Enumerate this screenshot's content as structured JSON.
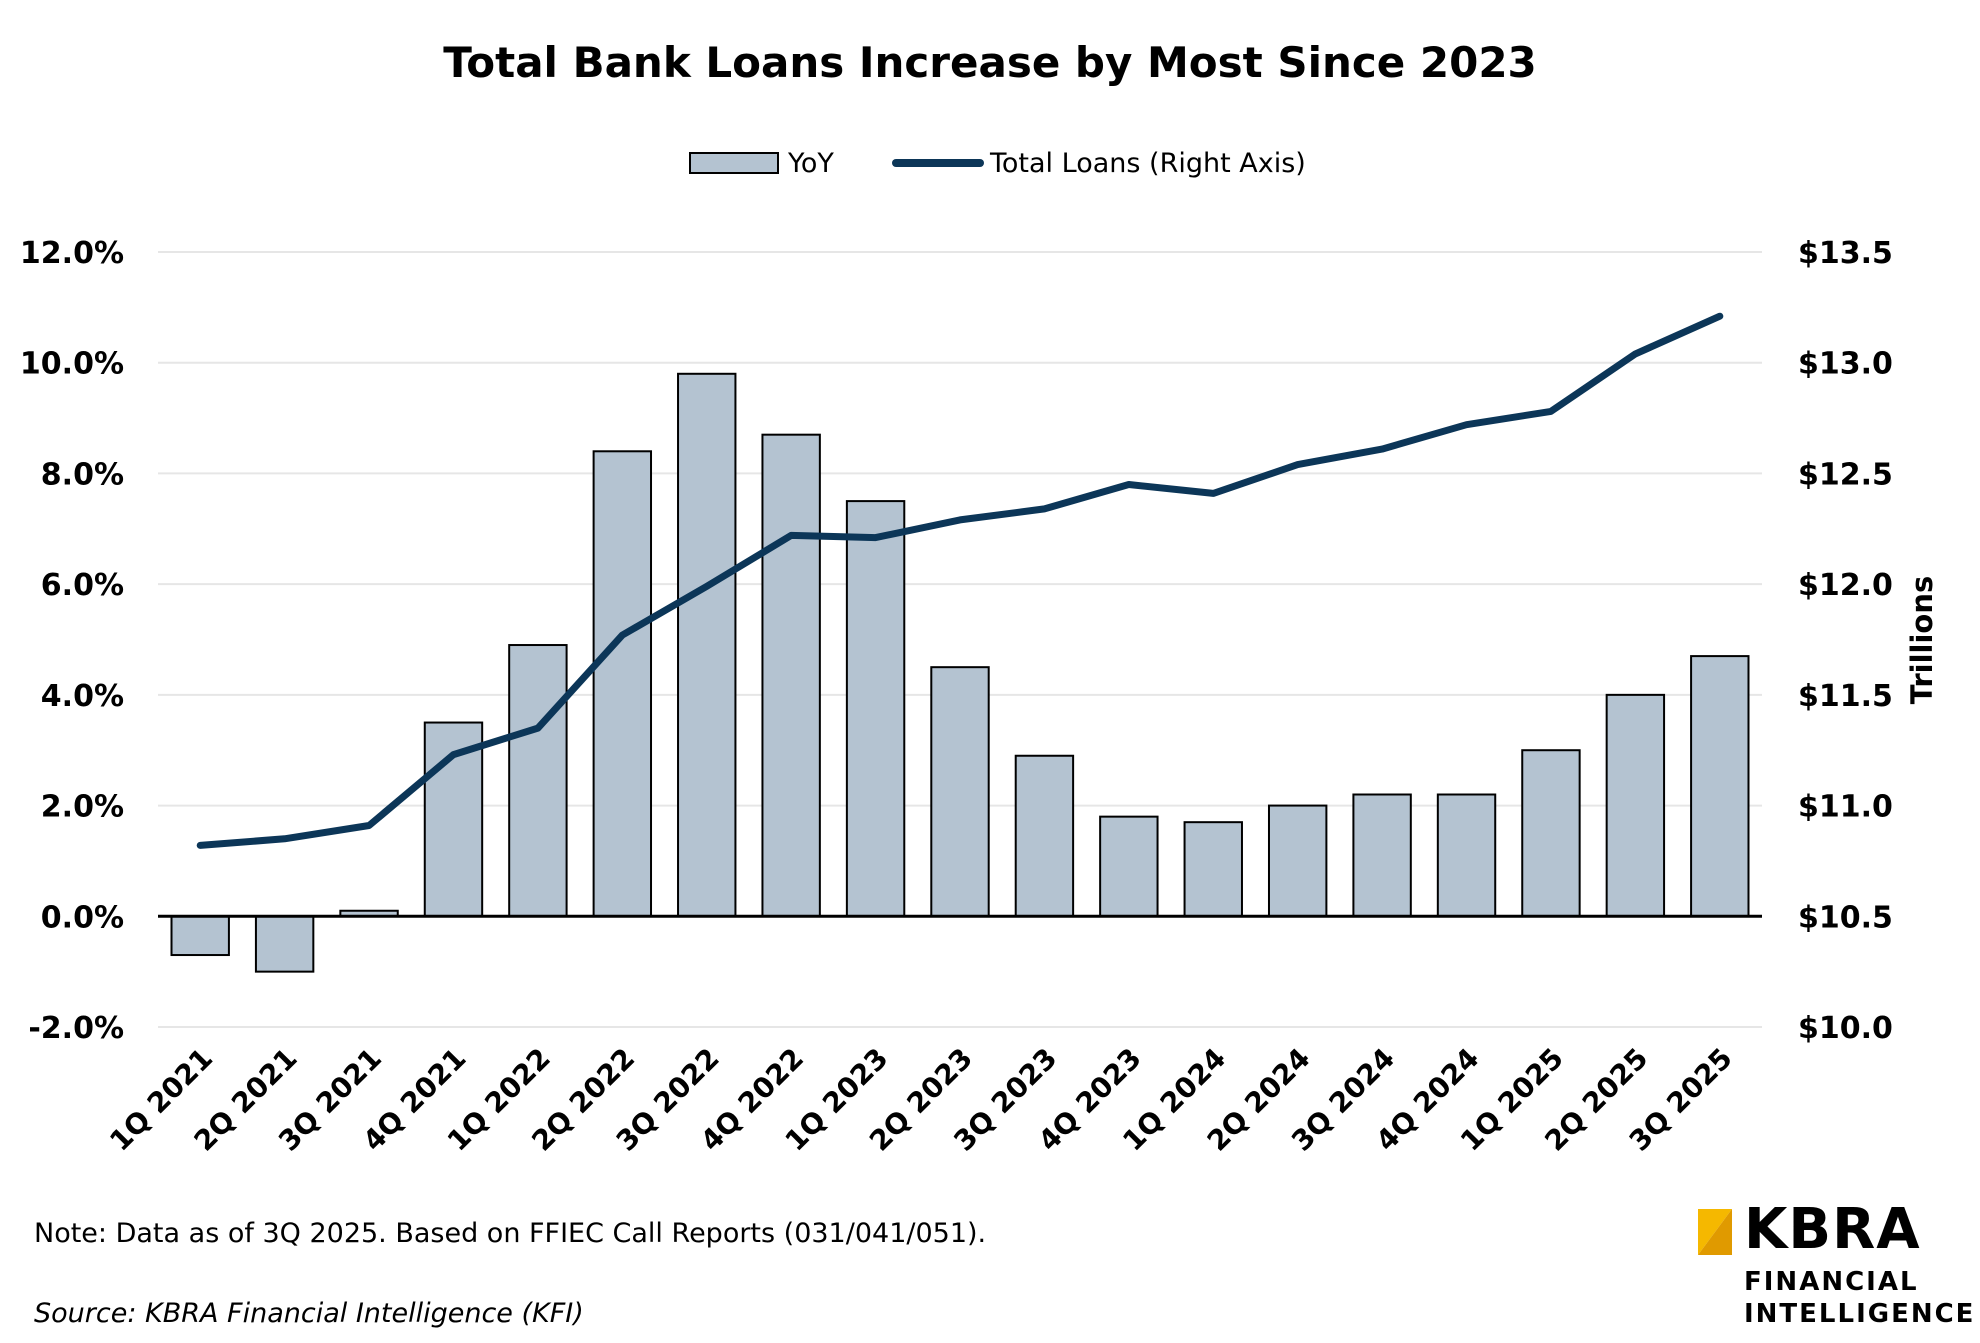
{
  "chart_data": {
    "type": "bar",
    "title": "Total Bank Loans Increase by Most Since 2023",
    "categories": [
      "1Q 2021",
      "2Q 2021",
      "3Q 2021",
      "4Q 2021",
      "1Q 2022",
      "2Q 2022",
      "3Q 2022",
      "4Q 2022",
      "1Q 2023",
      "2Q 2023",
      "3Q 2023",
      "4Q 2023",
      "1Q 2024",
      "2Q 2024",
      "3Q 2024",
      "4Q 2024",
      "1Q 2025",
      "2Q 2025",
      "3Q 2025"
    ],
    "series": [
      {
        "name": "YoY",
        "type": "bar",
        "axis": "left",
        "color": "#b4c3d1",
        "values": [
          -0.7,
          -1.0,
          0.1,
          3.5,
          4.9,
          8.4,
          9.8,
          8.7,
          7.5,
          4.5,
          2.9,
          1.8,
          1.7,
          2.0,
          2.2,
          2.2,
          3.0,
          4.0,
          4.7
        ]
      },
      {
        "name": "Total Loans (Right Axis)",
        "type": "line",
        "axis": "right",
        "color": "#0c3658",
        "values": [
          10.82,
          10.85,
          10.91,
          11.23,
          11.35,
          11.77,
          11.99,
          12.22,
          12.21,
          12.29,
          12.34,
          12.45,
          12.41,
          12.54,
          12.61,
          12.72,
          12.78,
          13.04,
          13.21
        ]
      }
    ],
    "y_left": {
      "min": -2,
      "max": 12,
      "ticks": [
        12,
        10,
        8,
        6,
        4,
        2,
        0,
        -2
      ],
      "tick_labels": [
        "12.0%",
        "10.0%",
        "8.0%",
        "6.0%",
        "4.0%",
        "2.0%",
        "0.0%",
        "-2.0%"
      ]
    },
    "y_right": {
      "min": 10.0,
      "max": 13.5,
      "label": "Trillions",
      "ticks": [
        13.5,
        13.0,
        12.5,
        12.0,
        11.5,
        11.0,
        10.5,
        10.0
      ],
      "tick_labels": [
        "$13.5",
        "$13.0",
        "$12.5",
        "$12.0",
        "$11.5",
        "$11.0",
        "$10.5",
        "$10.0"
      ]
    },
    "grid": true,
    "legend_position": "top-center"
  },
  "footer": {
    "note": "Note: Data as of 3Q 2025. Based on FFIEC Call Reports (031/041/051).",
    "source": "Source: KBRA Financial Intelligence (KFI)"
  },
  "logo": {
    "name": "KBRA",
    "line1": "FINANCIAL",
    "line2": "INTELLIGENCE",
    "accent_color": "#f5b800"
  }
}
